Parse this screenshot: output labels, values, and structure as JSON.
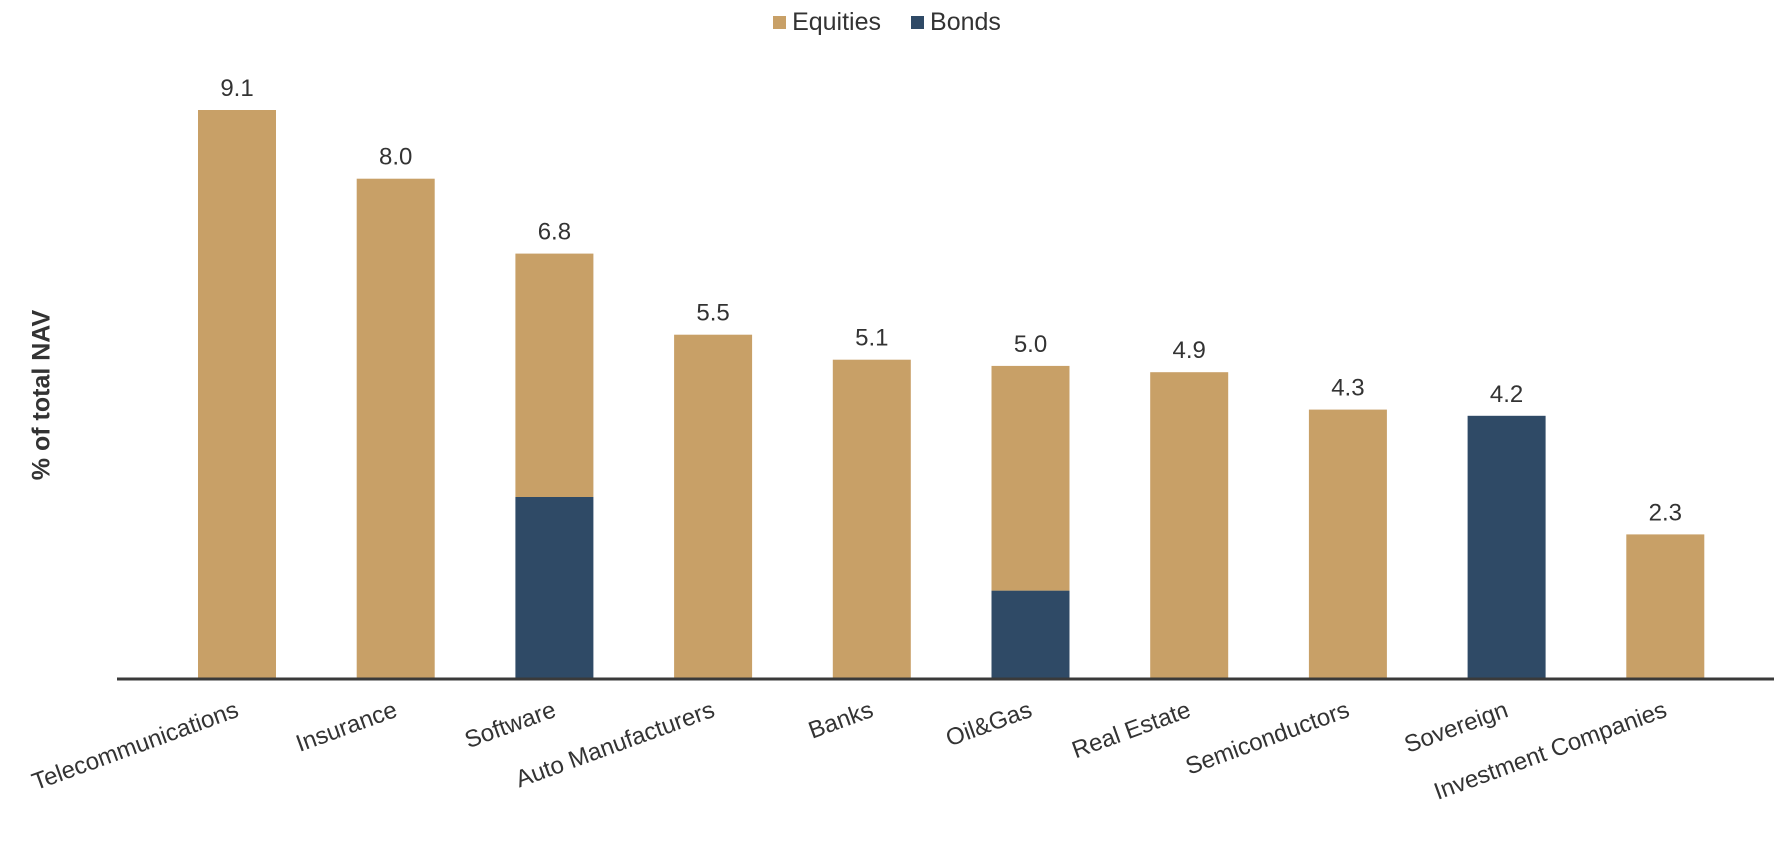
{
  "chart_data": {
    "type": "bar",
    "stacked": true,
    "title": "",
    "xlabel": "",
    "ylabel": "% of total NAV",
    "ylim": [
      0,
      9.1
    ],
    "grid": false,
    "legend_position": "top-center",
    "categories": [
      "Telecommunications",
      "Insurance",
      "Software",
      "Auto Manufacturers",
      "Banks",
      "Oil&Gas",
      "Real Estate",
      "Semiconductors",
      "Sovereign",
      "Investment Companies"
    ],
    "series": [
      {
        "name": "Bonds",
        "color": "#2f4a66",
        "values": [
          0,
          0,
          2.9,
          0,
          0,
          1.4,
          0,
          0,
          4.2,
          0
        ]
      },
      {
        "name": "Equities",
        "color": "#c8a067",
        "values": [
          9.1,
          8.0,
          3.9,
          5.5,
          5.1,
          3.6,
          4.9,
          4.3,
          0,
          2.3
        ]
      }
    ],
    "totals": [
      "9.1",
      "8.0",
      "6.8",
      "5.5",
      "5.1",
      "5.0",
      "4.9",
      "4.3",
      "4.2",
      "2.3"
    ],
    "legend": [
      {
        "name": "Equities",
        "color": "#c8a067"
      },
      {
        "name": "Bonds",
        "color": "#2f4a66"
      }
    ]
  }
}
